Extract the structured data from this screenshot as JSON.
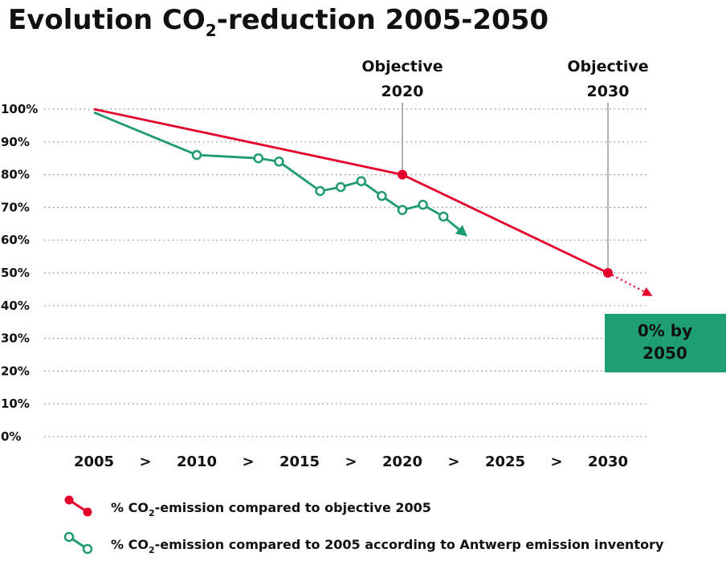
{
  "chart_data": {
    "type": "line",
    "title": {
      "prefix": "Evolution CO",
      "subscript": "2",
      "suffix": "-reduction 2005-2050"
    },
    "y_ticks": [
      "100%",
      "90%",
      "80%",
      "70%",
      "60%",
      "50%",
      "40%",
      "30%",
      "20%",
      "10%",
      "0%"
    ],
    "ylim": [
      0,
      100
    ],
    "x_ticks": [
      "2005",
      ">",
      "2010",
      ">",
      "2015",
      ">",
      "2020",
      ">",
      "2025",
      ">",
      "2030"
    ],
    "x_tick_values": [
      2005,
      2007.5,
      2010,
      2012.5,
      2015,
      2017.5,
      2020,
      2022.5,
      2025,
      2027.5,
      2030
    ],
    "xlim": [
      2005,
      2032
    ],
    "grid": "horizontal-dotted",
    "colors": {
      "objective": "#e4002b",
      "inventory": "#1f9b6e",
      "objective_guide": "#999999",
      "callout_bg": "#1f9f71"
    },
    "series": [
      {
        "key": "objective",
        "name_prefix": "% CO",
        "name_subscript": "2",
        "name_suffix": "-emission compared to objective 2005",
        "points": [
          {
            "x": 2005,
            "y": 100
          },
          {
            "x": 2020,
            "y": 80
          },
          {
            "x": 2030,
            "y": 50
          }
        ],
        "markers": [
          {
            "x": 2020,
            "y": 80
          },
          {
            "x": 2030,
            "y": 50
          }
        ],
        "projection": [
          {
            "x": 2030,
            "y": 50
          },
          {
            "x": 2032,
            "y": 43.5
          }
        ]
      },
      {
        "key": "inventory",
        "name_prefix": "% CO",
        "name_subscript": "2",
        "name_suffix": "-emission compared to 2005 according to Antwerp emission inventory",
        "points": [
          {
            "x": 2005,
            "y": 99
          },
          {
            "x": 2010,
            "y": 86
          },
          {
            "x": 2013,
            "y": 85
          },
          {
            "x": 2014,
            "y": 84
          },
          {
            "x": 2016,
            "y": 75
          },
          {
            "x": 2017,
            "y": 76.2
          },
          {
            "x": 2018,
            "y": 78
          },
          {
            "x": 2019,
            "y": 73.5
          },
          {
            "x": 2020,
            "y": 69.2
          },
          {
            "x": 2021,
            "y": 70.8
          },
          {
            "x": 2022,
            "y": 67.2
          }
        ],
        "markers": [
          {
            "x": 2010,
            "y": 86
          },
          {
            "x": 2013,
            "y": 85
          },
          {
            "x": 2014,
            "y": 84
          },
          {
            "x": 2016,
            "y": 75
          },
          {
            "x": 2017,
            "y": 76.2
          },
          {
            "x": 2018,
            "y": 78
          },
          {
            "x": 2019,
            "y": 73.5
          },
          {
            "x": 2020,
            "y": 69.2
          },
          {
            "x": 2021,
            "y": 70.8
          },
          {
            "x": 2022,
            "y": 67.2
          }
        ],
        "trend_end": {
          "x": 2023,
          "y": 62
        }
      }
    ],
    "annotations": [
      {
        "key": "obj2020",
        "line1": "Objective",
        "line2": "2020",
        "x": 2020,
        "y": 80
      },
      {
        "key": "obj2030",
        "line1": "Objective",
        "line2": "2030",
        "x": 2030,
        "y": 50
      }
    ],
    "callout": {
      "line1": "0% by",
      "line2": "2050"
    }
  }
}
